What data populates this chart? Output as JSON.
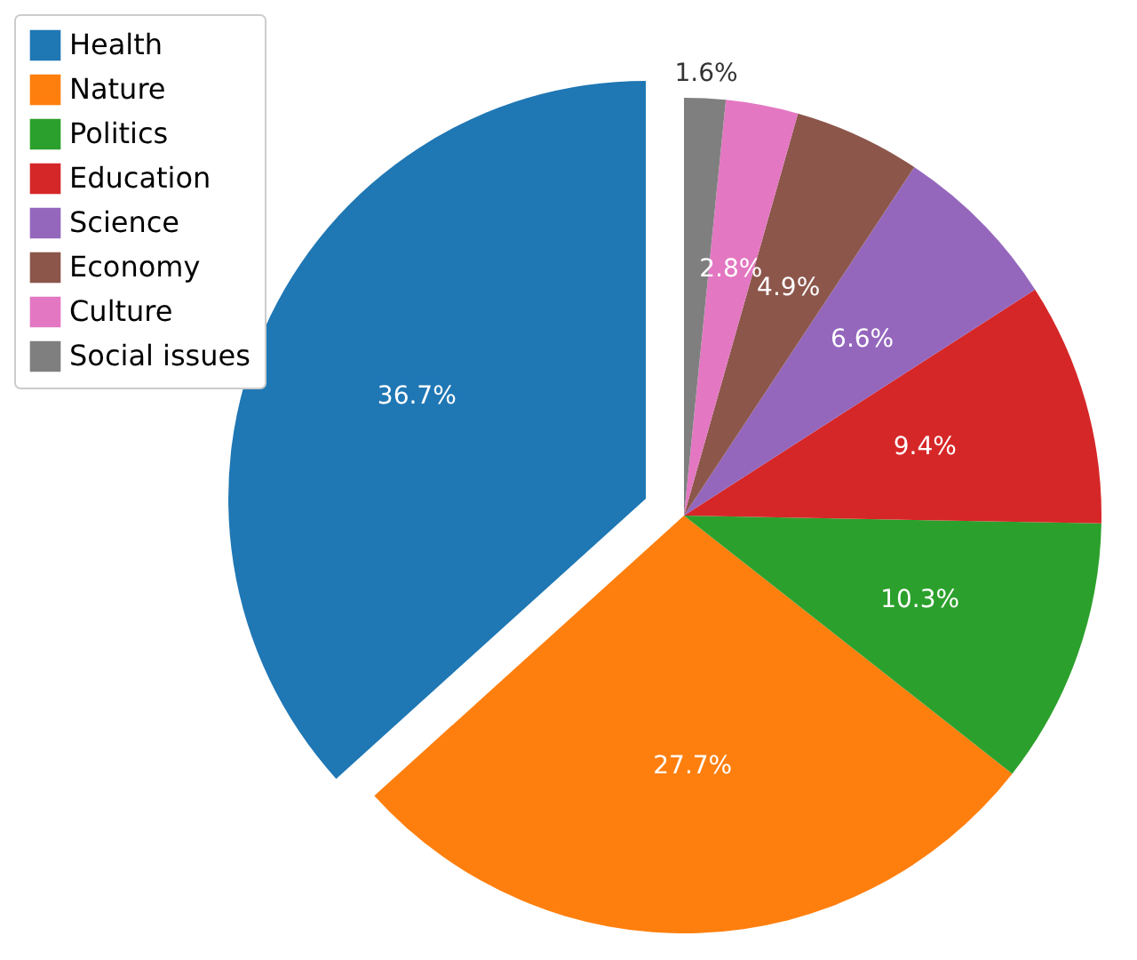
{
  "chart_data": {
    "type": "pie",
    "categories": [
      "Health",
      "Nature",
      "Politics",
      "Education",
      "Science",
      "Economy",
      "Culture",
      "Social issues"
    ],
    "values": [
      36.7,
      27.7,
      10.3,
      9.4,
      6.6,
      4.9,
      2.8,
      1.6
    ],
    "colors": [
      "#1f77b4",
      "#ff7f0e",
      "#2ca02c",
      "#d62728",
      "#9467bd",
      "#8c564b",
      "#e377c2",
      "#7f7f7f"
    ],
    "value_labels": [
      "36.7%",
      "27.7%",
      "10.3%",
      "9.4%",
      "6.6%",
      "4.9%",
      "2.8%",
      "1.6%"
    ],
    "legend": "top left"
  }
}
